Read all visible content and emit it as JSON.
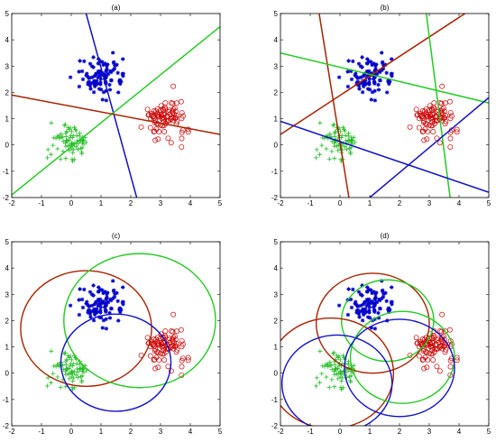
{
  "chart_data": [
    {
      "panel": "(a)",
      "type": "scatter",
      "title": "(a)",
      "xlim": [
        -2,
        5
      ],
      "ylim": [
        -2,
        5
      ],
      "xticks": [
        -2,
        -1,
        0,
        1,
        2,
        3,
        4,
        5
      ],
      "yticks": [
        -2,
        -1,
        0,
        1,
        2,
        3,
        4,
        5
      ],
      "clusters": [
        {
          "marker": "*",
          "color": "#0000cc",
          "center": [
            1.0,
            2.6
          ],
          "spread": [
            0.35,
            0.35
          ],
          "count": 100
        },
        {
          "marker": "o",
          "color": "#cc0000",
          "center": [
            3.1,
            1.0
          ],
          "spread": [
            0.35,
            0.35
          ],
          "count": 90
        },
        {
          "marker": "+",
          "color": "#22bb22",
          "center": [
            0.0,
            0.1
          ],
          "spread": [
            0.3,
            0.35
          ],
          "count": 80
        }
      ],
      "lines": [
        {
          "color": "#1010cc",
          "x": [
            0.5,
            2.2
          ],
          "y": [
            5,
            -2
          ]
        },
        {
          "color": "#22cc22",
          "x": [
            -2,
            5
          ],
          "y": [
            -1.9,
            4.5
          ]
        },
        {
          "color": "#aa2200",
          "x": [
            -2,
            5
          ],
          "y": [
            1.9,
            0.4
          ]
        }
      ],
      "circles": []
    },
    {
      "panel": "(b)",
      "type": "scatter",
      "title": "(b)",
      "xlim": [
        -2,
        5
      ],
      "ylim": [
        -2,
        5
      ],
      "xticks": [
        -2,
        -1,
        0,
        1,
        2,
        3,
        4,
        5
      ],
      "yticks": [
        -2,
        -1,
        0,
        1,
        2,
        3,
        4,
        5
      ],
      "clusters": [
        {
          "marker": "*",
          "color": "#0000cc",
          "center": [
            1.0,
            2.6
          ],
          "spread": [
            0.35,
            0.35
          ],
          "count": 100
        },
        {
          "marker": "o",
          "color": "#cc0000",
          "center": [
            3.1,
            1.0
          ],
          "spread": [
            0.35,
            0.35
          ],
          "count": 90
        },
        {
          "marker": "+",
          "color": "#22bb22",
          "center": [
            0.0,
            0.1
          ],
          "spread": [
            0.3,
            0.35
          ],
          "count": 80
        }
      ],
      "lines": [
        {
          "color": "#aa2200",
          "x": [
            -0.7,
            0.3
          ],
          "y": [
            5,
            -2
          ]
        },
        {
          "color": "#aa2200",
          "x": [
            -2,
            4.2
          ],
          "y": [
            0.4,
            5
          ]
        },
        {
          "color": "#22cc22",
          "x": [
            2.9,
            3.7
          ],
          "y": [
            5,
            -2
          ]
        },
        {
          "color": "#22cc22",
          "x": [
            -2,
            5
          ],
          "y": [
            3.5,
            1.6
          ]
        },
        {
          "color": "#1010cc",
          "x": [
            -2,
            5
          ],
          "y": [
            0.9,
            -1.8
          ]
        },
        {
          "color": "#1010cc",
          "x": [
            1.0,
            5.0
          ],
          "y": [
            -2,
            1.8
          ]
        }
      ],
      "circles": []
    },
    {
      "panel": "(c)",
      "type": "scatter",
      "title": "(c)",
      "xlim": [
        -2,
        5
      ],
      "ylim": [
        -2,
        5
      ],
      "xticks": [
        -2,
        -1,
        0,
        1,
        2,
        3,
        4,
        5
      ],
      "yticks": [
        -2,
        -1,
        0,
        1,
        2,
        3,
        4,
        5
      ],
      "clusters": [
        {
          "marker": "*",
          "color": "#0000cc",
          "center": [
            1.0,
            2.6
          ],
          "spread": [
            0.35,
            0.35
          ],
          "count": 100
        },
        {
          "marker": "o",
          "color": "#cc0000",
          "center": [
            3.1,
            1.0
          ],
          "spread": [
            0.35,
            0.35
          ],
          "count": 90
        },
        {
          "marker": "+",
          "color": "#22bb22",
          "center": [
            0.0,
            0.1
          ],
          "spread": [
            0.3,
            0.35
          ],
          "count": 80
        }
      ],
      "lines": [],
      "circles": [
        {
          "color": "#aa2200",
          "cx": 0.5,
          "cy": 1.7,
          "r": 2.2
        },
        {
          "color": "#22cc22",
          "cx": 2.3,
          "cy": 2.0,
          "r": 2.55
        },
        {
          "color": "#1010cc",
          "cx": 1.5,
          "cy": 0.4,
          "r": 1.85
        }
      ]
    },
    {
      "panel": "(d)",
      "type": "scatter",
      "title": "(d)",
      "xlim": [
        -2,
        5
      ],
      "ylim": [
        -2,
        5
      ],
      "xticks": [
        -2,
        -1,
        0,
        1,
        2,
        3,
        4,
        5
      ],
      "yticks": [
        -2,
        -1,
        0,
        1,
        2,
        3,
        4,
        5
      ],
      "clusters": [
        {
          "marker": "*",
          "color": "#0000cc",
          "center": [
            1.0,
            2.6
          ],
          "spread": [
            0.35,
            0.35
          ],
          "count": 100
        },
        {
          "marker": "o",
          "color": "#cc0000",
          "center": [
            3.1,
            1.0
          ],
          "spread": [
            0.35,
            0.35
          ],
          "count": 90
        },
        {
          "marker": "+",
          "color": "#22bb22",
          "center": [
            0.0,
            0.1
          ],
          "spread": [
            0.3,
            0.35
          ],
          "count": 80
        }
      ],
      "lines": [],
      "circles": [
        {
          "color": "#aa2200",
          "cx": 1.1,
          "cy": 1.9,
          "r": 1.9
        },
        {
          "color": "#22cc22",
          "cx": 1.6,
          "cy": 2.0,
          "r": 1.55
        },
        {
          "color": "#aa2200",
          "cx": -0.3,
          "cy": 0.0,
          "r": 2.1
        },
        {
          "color": "#1010cc",
          "cx": -0.1,
          "cy": -0.4,
          "r": 1.85
        },
        {
          "color": "#22cc22",
          "cx": 2.1,
          "cy": 0.6,
          "r": 1.75
        },
        {
          "color": "#1010cc",
          "cx": 2.0,
          "cy": 0.2,
          "r": 1.85
        }
      ]
    }
  ]
}
